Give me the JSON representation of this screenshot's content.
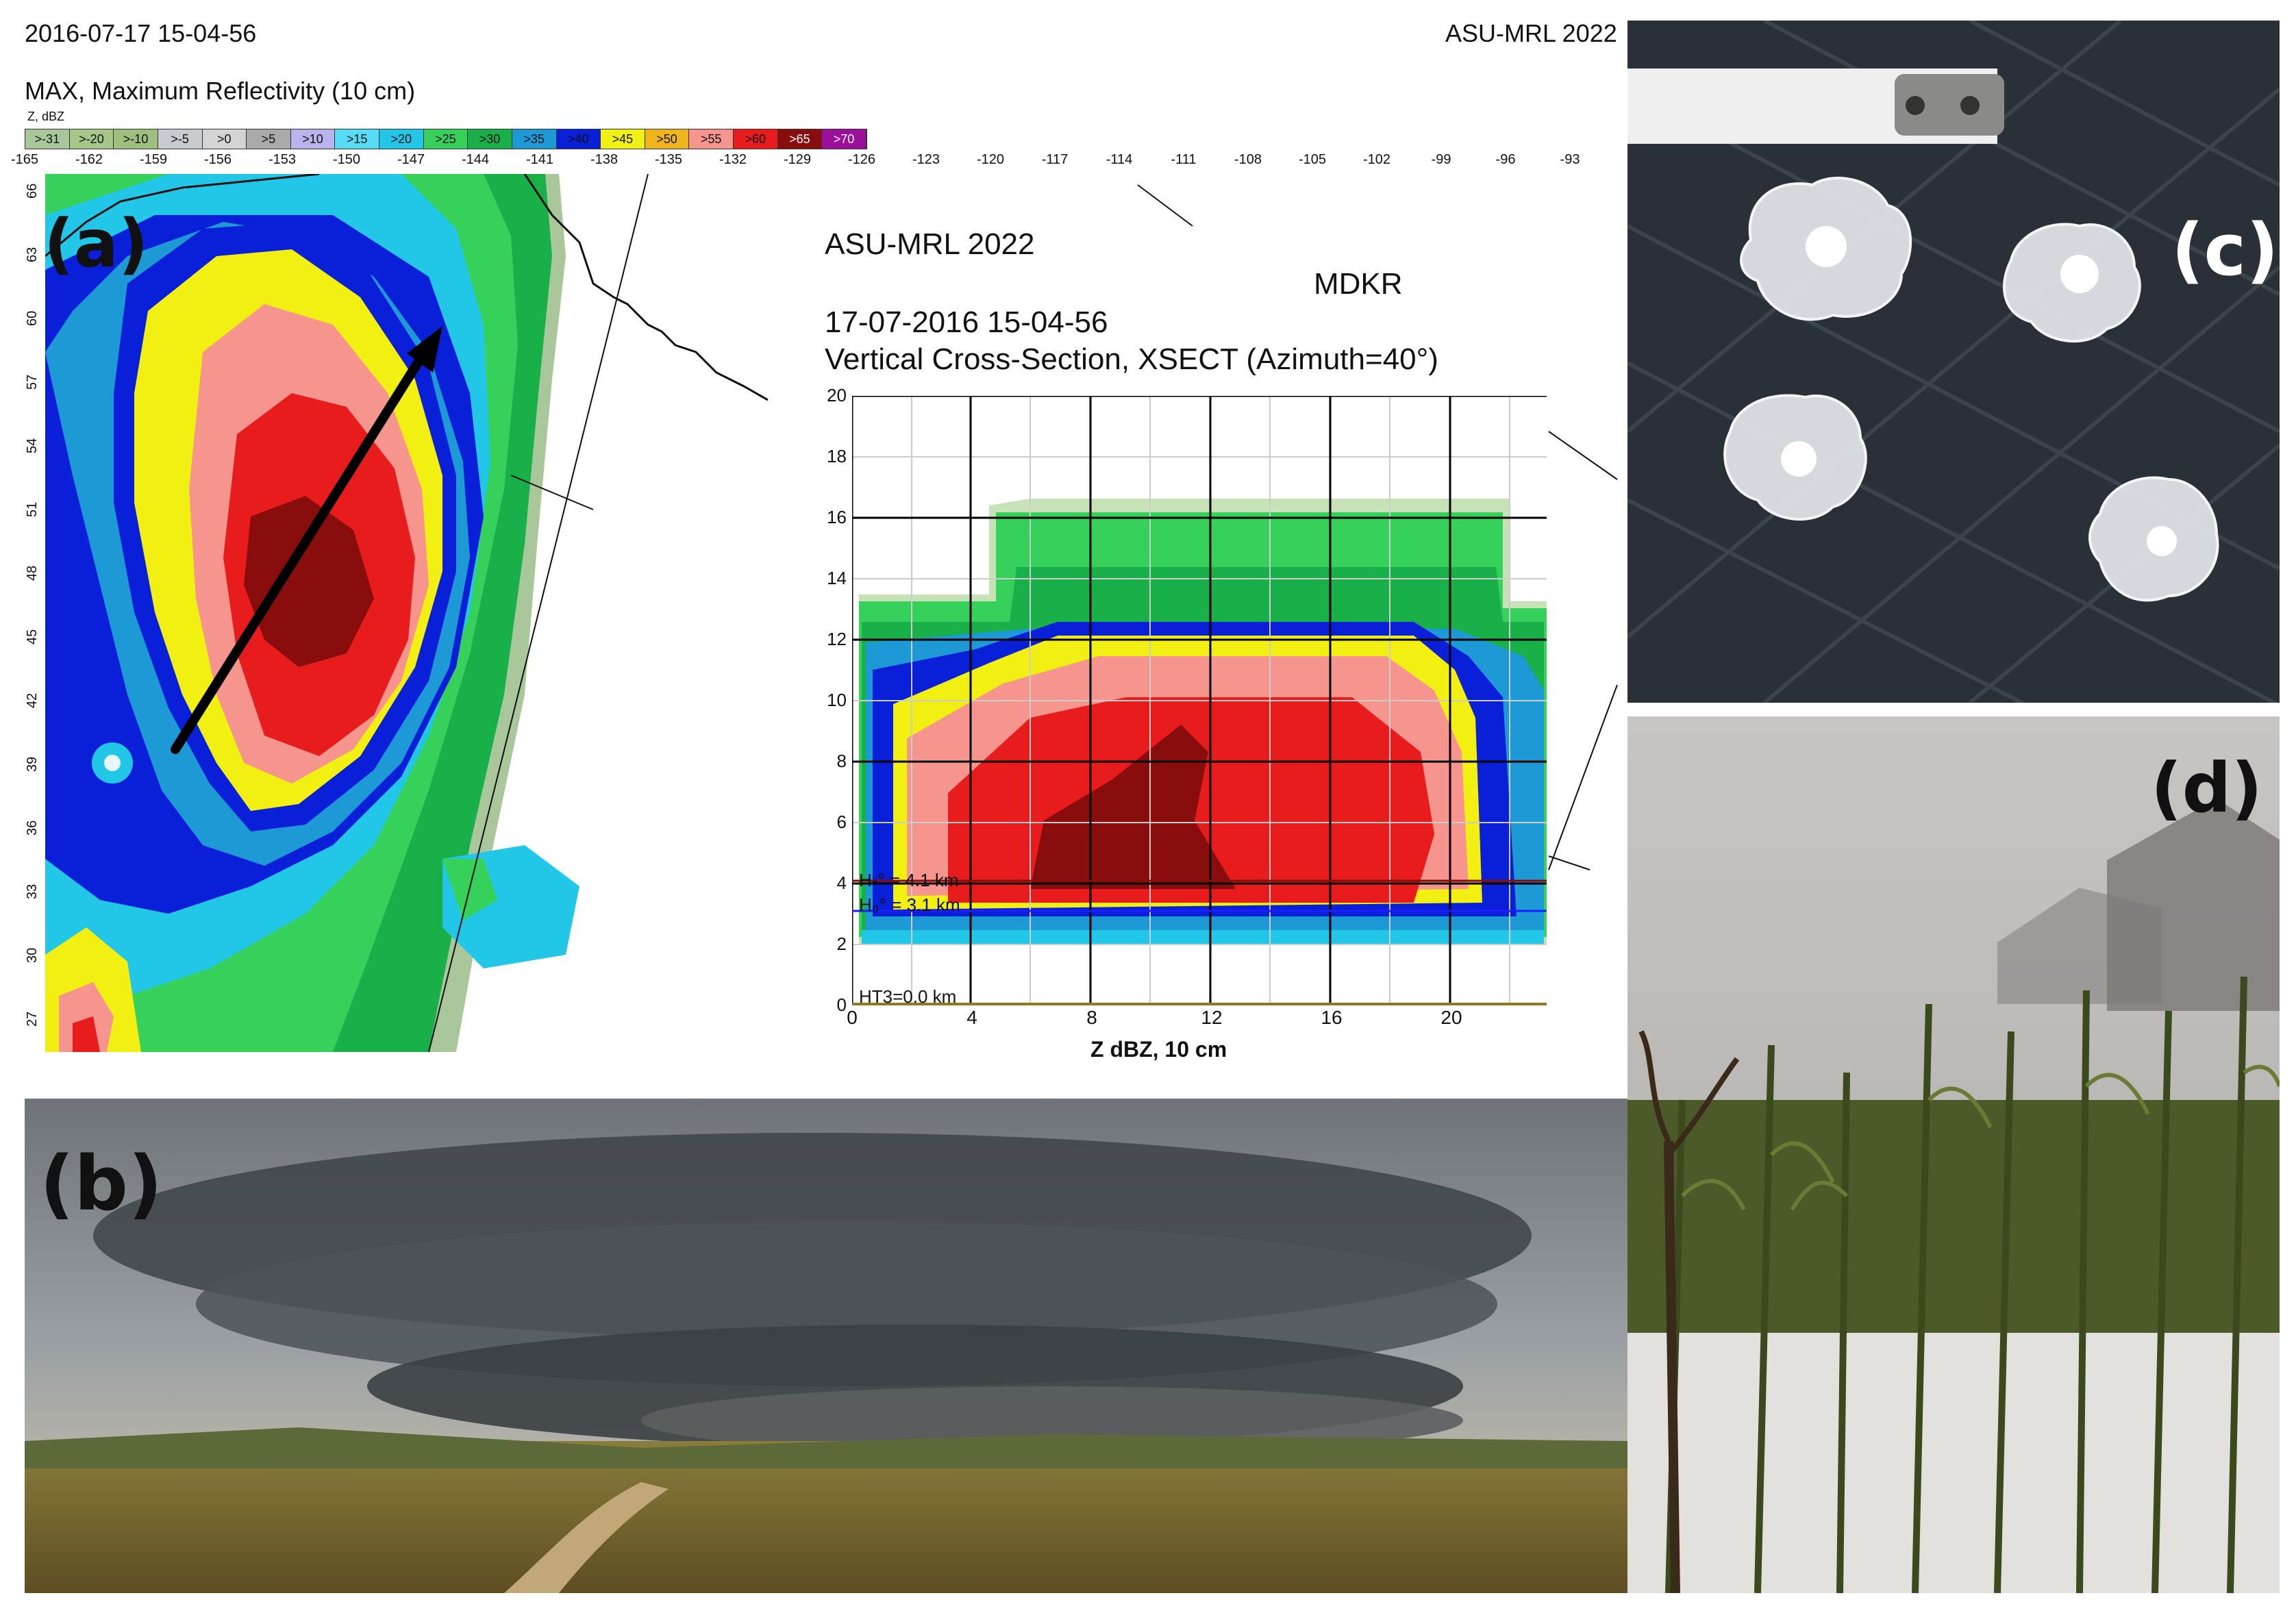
{
  "header": {
    "left_timestamp": "2016-07-17 15-04-56",
    "right_brand": "ASU-MRL 2022",
    "product_title": "MAX, Maximum Reflectivity (10 cm)",
    "z_unit": "Z, dBZ"
  },
  "legend": {
    "labels": [
      ">-31",
      ">-20",
      ">-10",
      ">-5",
      ">0",
      ">5",
      ">10",
      ">15",
      ">20",
      ">25",
      ">30",
      ">35",
      ">40",
      ">45",
      ">50",
      ">55",
      ">60",
      ">65",
      ">70"
    ],
    "colors": [
      "#a9c79a",
      "#a7c789",
      "#9fbf7f",
      "#c8cccf",
      "#d4d4d4",
      "#aaaaaa",
      "#b9b3ee",
      "#55ddf7",
      "#22c7e8",
      "#36d15a",
      "#19b04a",
      "#1d9ad6",
      "#0a1fd8",
      "#f2ef12",
      "#f0b41d",
      "#f5958d",
      "#e81c1c",
      "#8a0d0d",
      "#9b0f9a"
    ]
  },
  "lon_ticks": [
    "-165",
    "-162",
    "-159",
    "-156",
    "-153",
    "-150",
    "-147",
    "-144",
    "-141",
    "-138",
    "-135",
    "-132",
    "-129",
    "-126",
    "-123",
    "-120",
    "-117",
    "-114",
    "-111",
    "-108",
    "-105",
    "-102",
    "-99",
    "-96",
    "-93"
  ],
  "lat_ticks": [
    "66",
    "63",
    "60",
    "57",
    "54",
    "51",
    "48",
    "45",
    "42",
    "39",
    "36",
    "33",
    "30",
    "27"
  ],
  "panels": {
    "a": "(a)",
    "b": "(b)",
    "c": "(c)",
    "d": "(d)"
  },
  "cross_section": {
    "brand": "ASU-MRL 2022",
    "station": "MDKR",
    "datetime": "17-07-2016 15-04-56",
    "title": "Vertical Cross-Section, XSECT (Azimuth=40°)",
    "y_ticks": [
      "20",
      "18",
      "16",
      "14",
      "12",
      "10",
      "8",
      "6",
      "4",
      "2",
      "0"
    ],
    "x_ticks": [
      "0",
      "4",
      "8",
      "12",
      "16",
      "20"
    ],
    "x_title": "Z dBZ,  10 cm",
    "annotation_1": "H-° = 4.1 km",
    "annotation_2": "H₀° = 3.1 km",
    "annotation_3": "HT3=0.0 km"
  }
}
